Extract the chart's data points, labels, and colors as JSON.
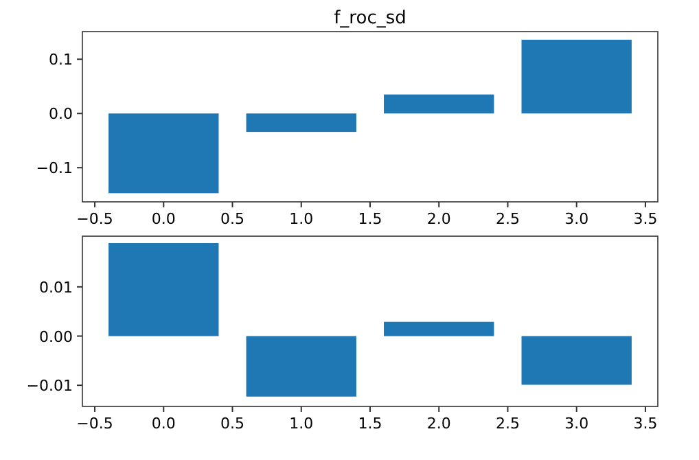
{
  "chart_data": [
    {
      "type": "bar",
      "title": "f_roc_sd",
      "x": [
        0,
        1,
        2,
        3
      ],
      "values": [
        -0.147,
        -0.034,
        0.035,
        0.136
      ],
      "color": "#1f77b4",
      "xlim": [
        -0.59,
        3.59
      ],
      "xticks": [
        {
          "value": -0.5,
          "label": "−0.5"
        },
        {
          "value": 0,
          "label": "0.0"
        },
        0.5,
        {
          "value": 1,
          "label": "1.0"
        },
        1.5,
        {
          "value": 2,
          "label": "2.0"
        },
        2.5,
        {
          "value": 3,
          "label": "3.0"
        },
        3.5
      ],
      "ylim": [
        -0.163,
        0.151
      ],
      "yticks": [
        {
          "value": -0.1,
          "label": "−0.1"
        },
        {
          "value": 0,
          "label": "0.0"
        },
        0.1
      ],
      "grid": false
    },
    {
      "type": "bar",
      "x": [
        0,
        1,
        2,
        3
      ],
      "values": [
        0.0189,
        -0.0123,
        0.0029,
        -0.0099
      ],
      "color": "#1f77b4",
      "xlim": [
        -0.59,
        3.59
      ],
      "xticks": [
        {
          "value": -0.5,
          "label": "−0.5"
        },
        {
          "value": 0,
          "label": "0.0"
        },
        0.5,
        {
          "value": 1,
          "label": "1.0"
        },
        1.5,
        {
          "value": 2,
          "label": "2.0"
        },
        2.5,
        {
          "value": 3,
          "label": "3.0"
        },
        3.5
      ],
      "ylim": [
        -0.0143,
        0.0203
      ],
      "yticks": [
        {
          "value": -0.01,
          "label": "−0.01"
        },
        {
          "value": 0,
          "label": "0.00"
        },
        0.01
      ],
      "grid": false
    }
  ]
}
